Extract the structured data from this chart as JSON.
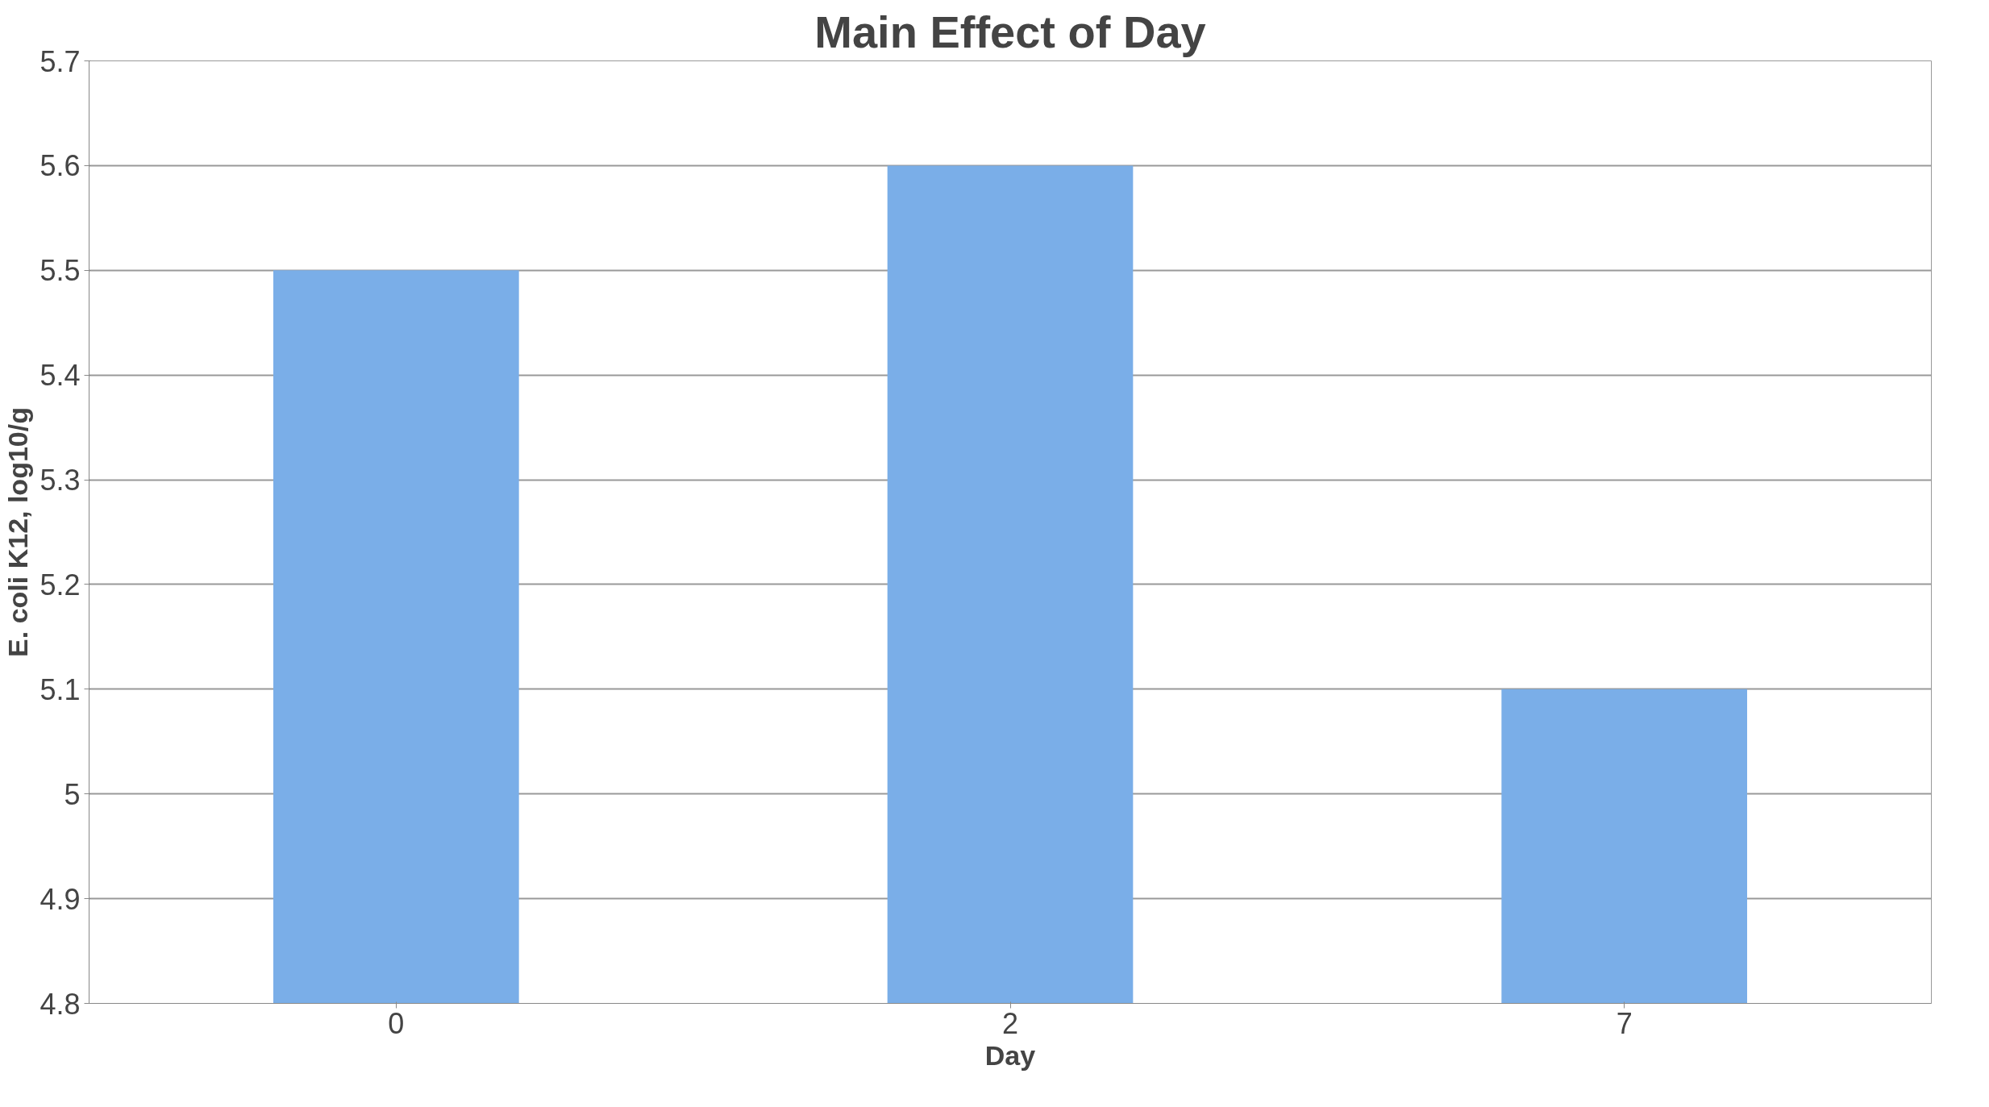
{
  "chart_data": {
    "type": "bar",
    "title": "Main Effect of Day",
    "xlabel": "Day",
    "ylabel": "E. coli K12, log10/g",
    "categories": [
      "0",
      "2",
      "7"
    ],
    "values": [
      5.5,
      5.6,
      5.1
    ],
    "color": "#7aaee8",
    "ylim": [
      4.8,
      5.7
    ],
    "yticks": [
      4.8,
      4.9,
      5,
      5.1,
      5.2,
      5.3,
      5.4,
      5.5,
      5.6,
      5.7
    ],
    "grid": "y"
  }
}
